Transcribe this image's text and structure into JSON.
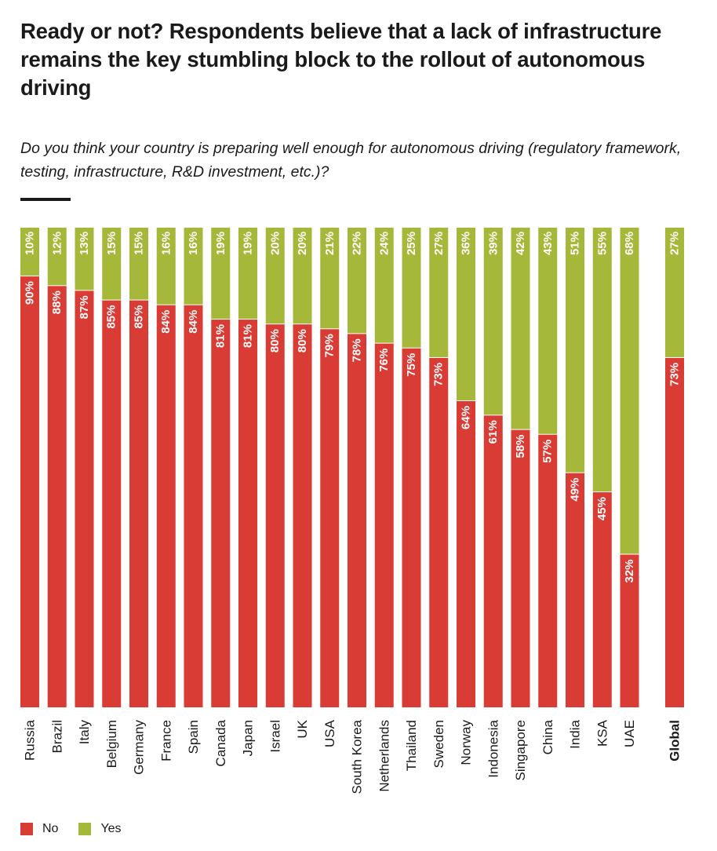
{
  "header": {
    "title": "Ready or not? Respondents believe that a lack of infrastructure remains the key stumbling block to the rollout of autonomous driving",
    "subtitle": "Do you think your country is preparing well enough for autonomous driving (regulatory framework, testing, infrastructure, R&D investment, etc.)?"
  },
  "legend": {
    "no_label": "No",
    "yes_label": "Yes"
  },
  "colors": {
    "no": "#d93b35",
    "yes": "#a6b83a",
    "text": "#1a1a1a",
    "label": "#ffffff"
  },
  "chart_data": {
    "type": "bar",
    "stacked": true,
    "orientation": "vertical",
    "title": "Ready or not? Respondents believe that a lack of infrastructure remains the key stumbling block to the rollout of autonomous driving",
    "subtitle": "Do you think your country is preparing well enough for autonomous driving (regulatory framework, testing, infrastructure, R&D investment, etc.)?",
    "categories": [
      "Russia",
      "Brazil",
      "Italy",
      "Belgium",
      "Germany",
      "France",
      "Spain",
      "Canada",
      "Japan",
      "Israel",
      "UK",
      "USA",
      "South Korea",
      "Netherlands",
      "Thailand",
      "Sweden",
      "Norway",
      "Indonesia",
      "Singapore",
      "China",
      "India",
      "KSA",
      "UAE",
      "Global"
    ],
    "series": [
      {
        "name": "No",
        "color": "#d93b35",
        "values": [
          90,
          88,
          87,
          85,
          85,
          84,
          84,
          81,
          81,
          80,
          80,
          79,
          78,
          76,
          75,
          73,
          64,
          61,
          58,
          57,
          49,
          45,
          32,
          73
        ]
      },
      {
        "name": "Yes",
        "color": "#a6b83a",
        "values": [
          10,
          12,
          13,
          15,
          15,
          16,
          16,
          19,
          19,
          20,
          20,
          21,
          22,
          24,
          25,
          27,
          36,
          39,
          42,
          43,
          51,
          55,
          68,
          27
        ]
      }
    ],
    "value_labels_unit": "%",
    "ylim": [
      0,
      100
    ],
    "grid": false,
    "legend_position": "bottom-left",
    "emphasized_category": "Global"
  }
}
